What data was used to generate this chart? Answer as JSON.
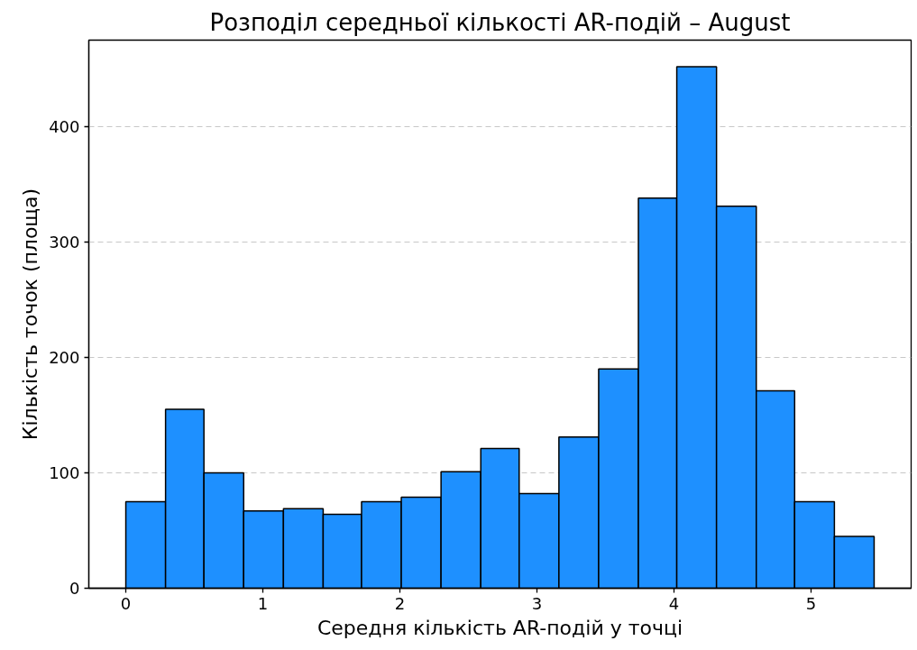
{
  "chart_data": {
    "type": "histogram",
    "title": "Розподіл середньої кількості AR-подій – August",
    "xlabel": "Середня кількість AR-подій у точці",
    "ylabel": "Кількість точок (площа)",
    "bins": [
      0,
      0.29,
      0.57,
      0.86,
      1.15,
      1.44,
      1.72,
      2.01,
      2.3,
      2.59,
      2.87,
      3.16,
      3.45,
      3.74,
      4.02,
      4.31,
      4.6,
      4.88,
      5.17,
      5.46
    ],
    "values": [
      75,
      155,
      100,
      67,
      69,
      64,
      75,
      79,
      101,
      121,
      82,
      131,
      190,
      338,
      452,
      331,
      171,
      75,
      45
    ],
    "color": "#1e90ff",
    "xlim": [
      -0.27,
      5.73
    ],
    "ylim": [
      0,
      475
    ],
    "xticks": [
      0,
      1,
      2,
      3,
      4,
      5
    ],
    "yticks": [
      0,
      100,
      200,
      300,
      400
    ],
    "grid": "y"
  }
}
